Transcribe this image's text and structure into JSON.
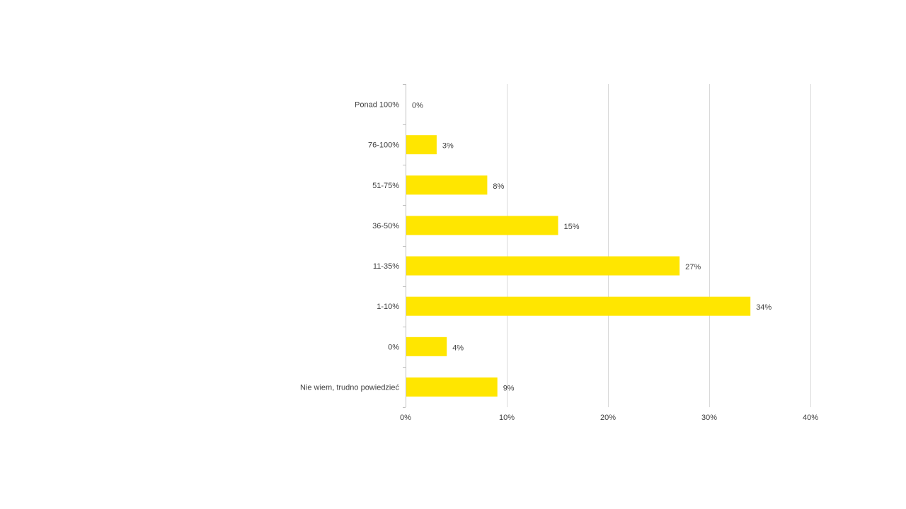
{
  "chart_data": {
    "type": "bar",
    "orientation": "horizontal",
    "categories": [
      "Ponad 100%",
      "76-100%",
      "51-75%",
      "36-50%",
      "11-35%",
      "1-10%",
      "0%",
      "Nie wiem, trudno powiedzieć"
    ],
    "values": [
      0,
      3,
      8,
      15,
      27,
      34,
      4,
      9
    ],
    "data_labels": [
      "0%",
      "3%",
      "8%",
      "15%",
      "27%",
      "34%",
      "4%",
      "9%"
    ],
    "title": "",
    "xlabel": "",
    "ylabel": "",
    "xlim": [
      0,
      40
    ],
    "x_ticks": [
      0,
      10,
      20,
      30,
      40
    ],
    "x_tick_labels": [
      "0%",
      "10%",
      "20%",
      "30%",
      "40%"
    ],
    "grid": "vertical",
    "legend": "none",
    "colors": {
      "bar": "#FFE600",
      "grid": "#D9D9D9",
      "axis": "#BFBFBF",
      "text": "#404040"
    }
  }
}
